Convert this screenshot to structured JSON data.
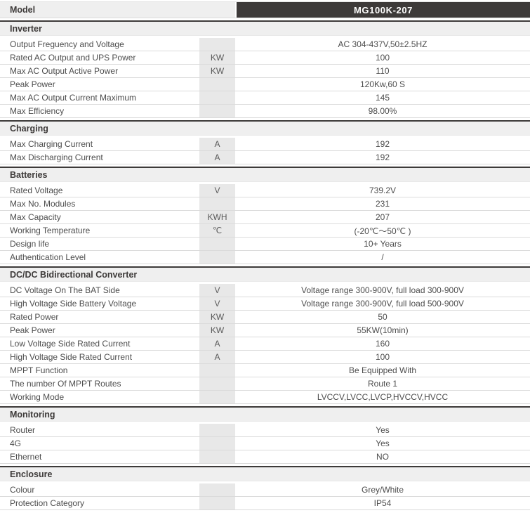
{
  "model": {
    "label": "Model",
    "value": "MG100K-207"
  },
  "colors": {
    "header_bar": "#3d3a39",
    "section_bg": "#efefef",
    "unit_cell_bg": "#e8e8e8",
    "row_border": "#dbdbdb",
    "header_text": "#ffffff",
    "body_text": "#4d4d4d"
  },
  "sections": [
    {
      "title": "Inverter",
      "rows": [
        {
          "name": "Output Freguency and Voltage",
          "unit": "",
          "value": "AC 304-437V,50±2.5HZ"
        },
        {
          "name": "Rated AC Output and UPS Power",
          "unit": "KW",
          "value": "100"
        },
        {
          "name": "Max AC Output Active Power",
          "unit": "KW",
          "value": "110"
        },
        {
          "name": "Peak Power",
          "unit": "",
          "value": "120Kw,60 S"
        },
        {
          "name": "Max AC Output Current Maximum",
          "unit": "",
          "value": "145"
        },
        {
          "name": "Max Efficiency",
          "unit": "",
          "value": "98.00%"
        }
      ]
    },
    {
      "title": "Charging",
      "rows": [
        {
          "name": "Max Charging Current",
          "unit": "A",
          "value": "192"
        },
        {
          "name": "Max Discharging Current",
          "unit": "A",
          "value": "192"
        }
      ]
    },
    {
      "title": "Batteries",
      "rows": [
        {
          "name": "Rated Voltage",
          "unit": "V",
          "value": "739.2V"
        },
        {
          "name": "Max No. Modules",
          "unit": "",
          "value": "231"
        },
        {
          "name": "Max Capacity",
          "unit": "KWH",
          "value": "207"
        },
        {
          "name": "Working Temperature",
          "unit": "℃",
          "value": "(-20℃～50℃ )"
        },
        {
          "name": "Design life",
          "unit": "",
          "value": "10+ Years"
        },
        {
          "name": "Authentication Level",
          "unit": "",
          "value": "/"
        }
      ]
    },
    {
      "title": "DC/DC Bidirectional Converter",
      "rows": [
        {
          "name": "DC Voltage On The BAT Side",
          "unit": "V",
          "value": "Voltage range 300-900V, full load 300-900V"
        },
        {
          "name": "High Voltage Side Battery Voltage",
          "unit": "V",
          "value": "Voltage range 300-900V, full load 500-900V"
        },
        {
          "name": "Rated Power",
          "unit": "KW",
          "value": "50"
        },
        {
          "name": "Peak Power",
          "unit": "KW",
          "value": "55KW(10min)"
        },
        {
          "name": "Low Voltage Side Rated Current",
          "unit": "A",
          "value": "160"
        },
        {
          "name": "High Voltage Side Rated Current",
          "unit": "A",
          "value": "100"
        },
        {
          "name": "MPPT Function",
          "unit": "",
          "value": "Be Equipped With"
        },
        {
          "name": "The number Of MPPT Routes",
          "unit": "",
          "value": "Route 1"
        },
        {
          "name": "Working Mode",
          "unit": "",
          "value": "LVCCV,LVCC,LVCP,HVCCV,HVCC"
        }
      ]
    },
    {
      "title": "Monitoring",
      "rows": [
        {
          "name": "Router",
          "unit": "",
          "value": "Yes"
        },
        {
          "name": "4G",
          "unit": "",
          "value": "Yes"
        },
        {
          "name": "Ethernet",
          "unit": "",
          "value": "NO"
        }
      ]
    },
    {
      "title": "Enclosure",
      "rows": [
        {
          "name": "Colour",
          "unit": "",
          "value": "Grey/White"
        },
        {
          "name": "Protection Category",
          "unit": "",
          "value": "IP54"
        }
      ]
    }
  ]
}
